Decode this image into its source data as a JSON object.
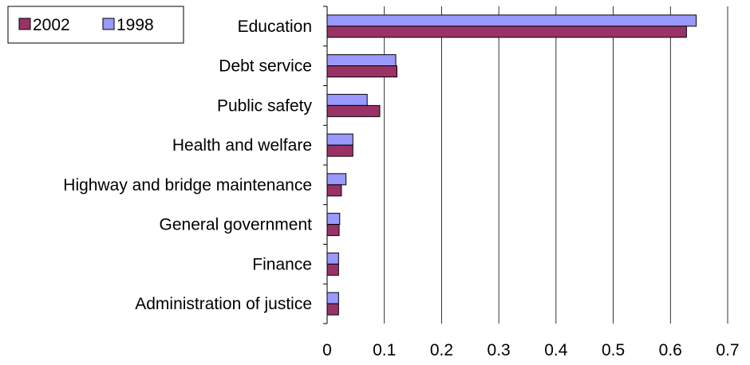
{
  "chart_data": {
    "type": "bar",
    "orientation": "horizontal",
    "categories": [
      "Education",
      "Debt service",
      "Public safety",
      "Health and welfare",
      "Highway and bridge maintenance",
      "General government",
      "Finance",
      "Administration of justice"
    ],
    "series": [
      {
        "name": "2002",
        "color": "#993366",
        "values": [
          0.628,
          0.122,
          0.092,
          0.045,
          0.025,
          0.021,
          0.02,
          0.02
        ]
      },
      {
        "name": "1998",
        "color": "#9999ff",
        "values": [
          0.645,
          0.12,
          0.07,
          0.045,
          0.033,
          0.022,
          0.02,
          0.02
        ]
      }
    ],
    "xlim": [
      0,
      0.7
    ],
    "xticks": [
      "0",
      "0.1",
      "0.2",
      "0.3",
      "0.4",
      "0.5",
      "0.6",
      "0.7"
    ],
    "grid": true,
    "legend": "top-left"
  }
}
